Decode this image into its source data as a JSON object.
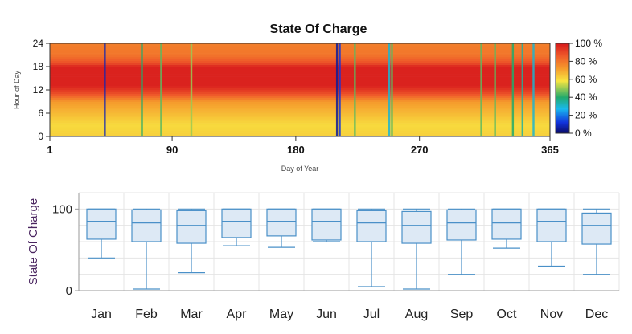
{
  "chart_data": [
    {
      "type": "heatmap",
      "title": "State Of Charge",
      "xlabel": "Day of Year",
      "ylabel": "Hour of Day",
      "xlim": [
        1,
        365
      ],
      "ylim": [
        0,
        24
      ],
      "x_ticks": [
        "1",
        "90",
        "180",
        "270",
        "365"
      ],
      "y_ticks": [
        "0",
        "6",
        "12",
        "18",
        "24"
      ],
      "colorbar": {
        "labels": [
          "100 %",
          "80 %",
          "60 %",
          "40 %",
          "20 %",
          "0 %"
        ],
        "colors": [
          "#d7191c",
          "#ef5a2a",
          "#f59a2c",
          "#f8e541",
          "#22aa6b",
          "#19b8ee",
          "#1133dd",
          "#0a0a66"
        ]
      },
      "profile_by_hour": [
        {
          "hour": 0,
          "soc": 62
        },
        {
          "hour": 3,
          "soc": 60
        },
        {
          "hour": 6,
          "soc": 66
        },
        {
          "hour": 9,
          "soc": 72
        },
        {
          "hour": 11,
          "soc": 88
        },
        {
          "hour": 13,
          "soc": 98
        },
        {
          "hour": 18,
          "soc": 98
        },
        {
          "hour": 19,
          "soc": 88
        },
        {
          "hour": 21,
          "soc": 80
        },
        {
          "hour": 24,
          "soc": 78
        }
      ],
      "low_charge_days": [
        {
          "day": 41,
          "soc": 8
        },
        {
          "day": 68,
          "soc": 40
        },
        {
          "day": 82,
          "soc": 45
        },
        {
          "day": 104,
          "soc": 50
        },
        {
          "day": 210,
          "soc": 5
        },
        {
          "day": 212,
          "soc": 12
        },
        {
          "day": 223,
          "soc": 45
        },
        {
          "day": 248,
          "soc": 30
        },
        {
          "day": 250,
          "soc": 45
        },
        {
          "day": 315,
          "soc": 45
        },
        {
          "day": 325,
          "soc": 45
        },
        {
          "day": 338,
          "soc": 40
        },
        {
          "day": 345,
          "soc": 35
        },
        {
          "day": 353,
          "soc": 30
        }
      ]
    },
    {
      "type": "box",
      "ylabel": "State Of Charge",
      "ylim": [
        0,
        120
      ],
      "y_ticks": [
        "0",
        "100"
      ],
      "categories": [
        "Jan",
        "Feb",
        "Mar",
        "Apr",
        "May",
        "Jun",
        "Jul",
        "Aug",
        "Sep",
        "Oct",
        "Nov",
        "Dec"
      ],
      "boxes": [
        {
          "min": 40,
          "q1": 63,
          "median": 85,
          "q3": 100,
          "max": 100
        },
        {
          "min": 2,
          "q1": 60,
          "median": 83,
          "q3": 99,
          "max": 100
        },
        {
          "min": 22,
          "q1": 58,
          "median": 80,
          "q3": 98,
          "max": 100
        },
        {
          "min": 55,
          "q1": 65,
          "median": 85,
          "q3": 100,
          "max": 100
        },
        {
          "min": 53,
          "q1": 67,
          "median": 85,
          "q3": 100,
          "max": 100
        },
        {
          "min": 60,
          "q1": 62,
          "median": 85,
          "q3": 100,
          "max": 100
        },
        {
          "min": 5,
          "q1": 60,
          "median": 83,
          "q3": 98,
          "max": 100
        },
        {
          "min": 2,
          "q1": 58,
          "median": 80,
          "q3": 97,
          "max": 100
        },
        {
          "min": 20,
          "q1": 62,
          "median": 83,
          "q3": 99,
          "max": 100
        },
        {
          "min": 52,
          "q1": 63,
          "median": 83,
          "q3": 100,
          "max": 100
        },
        {
          "min": 30,
          "q1": 60,
          "median": 85,
          "q3": 100,
          "max": 100
        },
        {
          "min": 20,
          "q1": 57,
          "median": 80,
          "q3": 95,
          "max": 100
        }
      ],
      "grid": true,
      "colors": {
        "box_fill": "#dde9f5",
        "box_stroke": "#4a90c8",
        "grid": "#e4e4e4"
      }
    }
  ]
}
